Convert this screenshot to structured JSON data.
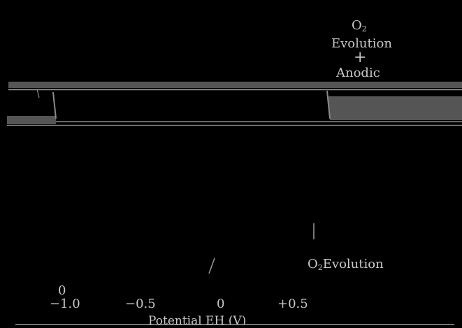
{
  "colors": {
    "background": "#000000",
    "band": "#555555",
    "line": "#9a9a9a",
    "text": "#c8c8c8"
  },
  "labels": {
    "top_o2": "O",
    "top_o2_sub": "2",
    "evolution": "Evolution",
    "plus": "+",
    "anodic": "Anodic",
    "o2_evolution_o": "O",
    "o2_evolution_sub": "2",
    "o2_evolution_text": "Evolution",
    "zero_above": "0",
    "axis_caption": "Potential EH (V)"
  },
  "ticks": [
    "−1.0",
    "−0.5",
    "0",
    "+0.5"
  ]
}
